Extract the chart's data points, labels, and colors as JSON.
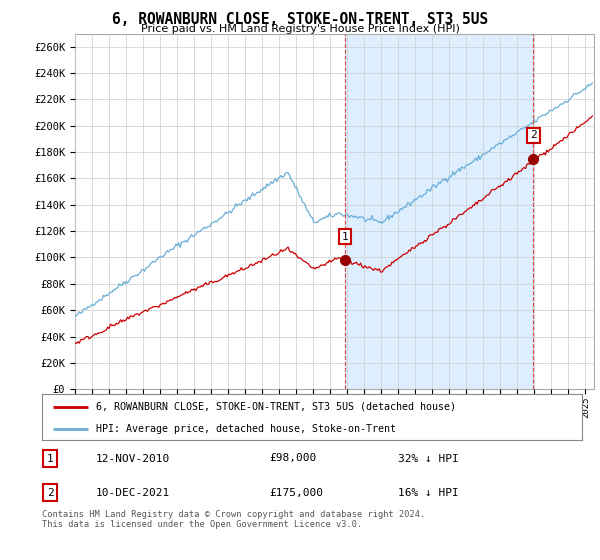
{
  "title": "6, ROWANBURN CLOSE, STOKE-ON-TRENT, ST3 5US",
  "subtitle": "Price paid vs. HM Land Registry's House Price Index (HPI)",
  "ylabel_ticks": [
    "£0",
    "£20K",
    "£40K",
    "£60K",
    "£80K",
    "£100K",
    "£120K",
    "£140K",
    "£160K",
    "£180K",
    "£200K",
    "£220K",
    "£240K",
    "£260K"
  ],
  "ytick_values": [
    0,
    20000,
    40000,
    60000,
    80000,
    100000,
    120000,
    140000,
    160000,
    180000,
    200000,
    220000,
    240000,
    260000
  ],
  "xlim_start": 1995.0,
  "xlim_end": 2025.5,
  "ylim_min": 0,
  "ylim_max": 270000,
  "hpi_color": "#6baed6",
  "price_color": "#cc0000",
  "shade_color": "#ddeeff",
  "sale1_date": 2010.87,
  "sale1_price": 98000,
  "sale1_label": "1",
  "sale2_date": 2021.94,
  "sale2_price": 175000,
  "sale2_label": "2",
  "legend_line1": "6, ROWANBURN CLOSE, STOKE-ON-TRENT, ST3 5US (detached house)",
  "legend_line2": "HPI: Average price, detached house, Stoke-on-Trent",
  "annot1_num": "1",
  "annot1_date": "12-NOV-2010",
  "annot1_price": "£98,000",
  "annot1_pct": "32% ↓ HPI",
  "annot2_num": "2",
  "annot2_date": "10-DEC-2021",
  "annot2_price": "£175,000",
  "annot2_pct": "16% ↓ HPI",
  "footer": "Contains HM Land Registry data © Crown copyright and database right 2024.\nThis data is licensed under the Open Government Licence v3.0.",
  "background_color": "#ffffff",
  "grid_color": "#cccccc"
}
